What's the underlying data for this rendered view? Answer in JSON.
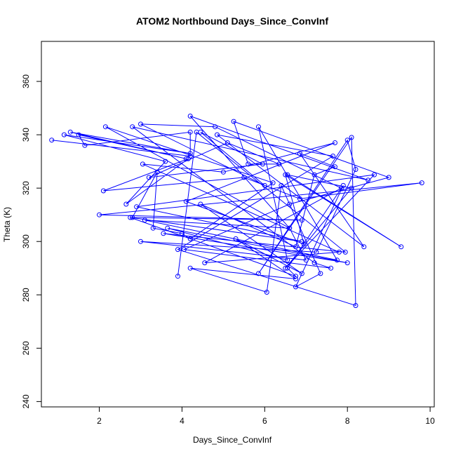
{
  "chart_data": {
    "type": "line",
    "title": "ATOM2 Northbound Days_Since_ConvInf",
    "xlabel": "Days_Since_ConvInf",
    "ylabel": "Theta (K)",
    "xlim": [
      0.6,
      10.1
    ],
    "ylim": [
      238,
      375
    ],
    "x_ticks": [
      2,
      4,
      6,
      8,
      10
    ],
    "y_ticks": [
      240,
      260,
      280,
      300,
      320,
      340,
      360
    ],
    "grid": false,
    "legend": "none",
    "color": "#0000ff",
    "marker": "open-circle",
    "series": [
      {
        "x": [
          0.85,
          4.2,
          4.2,
          1.65,
          1.5,
          4.1,
          1.3,
          4.2,
          1.15,
          3.6,
          2.65,
          4.15,
          2.1,
          5.5,
          6.85,
          9.8,
          2.0,
          6.9,
          2.8,
          3.4,
          3.3,
          4.0,
          4.2,
          6.2,
          2.15,
          6.6,
          4.2,
          8.5,
          2.8,
          7.2,
          7.6,
          4.05,
          6.6,
          9.0,
          5.25,
          5.6,
          6.35,
          5.1,
          3.2,
          5.95,
          4.45,
          6.0,
          3.0,
          4.8,
          7.85,
          4.55,
          7.8,
          3.05,
          5.0,
          7.7,
          4.1,
          6.95,
          6.5,
          9.3,
          6.55,
          8.1,
          6.5,
          8.65,
          2.9,
          6.9,
          2.75,
          6.75,
          6.55,
          7.9,
          6.75,
          7.35,
          6.4,
          6.05,
          4.2,
          6.75,
          5.3,
          6.9,
          4.45,
          6.75,
          7.2,
          7.7,
          6.85,
          8.4,
          4.85,
          7.65,
          3.9,
          8.2,
          8.1,
          5.85,
          8.0,
          8.2,
          7.25,
          3.0,
          7.0,
          6.6,
          3.1,
          7.75,
          5.85,
          6.55,
          3.65,
          8.0,
          3.55,
          7.95,
          4.35,
          3.9
        ],
        "y": [
          338,
          332,
          341,
          336,
          340,
          331,
          341,
          333,
          340,
          330,
          314,
          331,
          319,
          324,
          316,
          322,
          310,
          308,
          309,
          326,
          305,
          303,
          301,
          322,
          343,
          305,
          347,
          323,
          343,
          292,
          290,
          297,
          314,
          324,
          345,
          329,
          329,
          337,
          324,
          329,
          341,
          321,
          344,
          343,
          320,
          292,
          296,
          329,
          326,
          337,
          315,
          299,
          325,
          298,
          325,
          320,
          290,
          325,
          313,
          300,
          309,
          287,
          290,
          321,
          283,
          288,
          321,
          281,
          290,
          286,
          301,
          288,
          314,
          298,
          325,
          328,
          333,
          298,
          340,
          332,
          297,
          276,
          339,
          288,
          338,
          327,
          296,
          300,
          293,
          305,
          308,
          293,
          343,
          293,
          305,
          292,
          303,
          296,
          341,
          287
        ]
      }
    ]
  }
}
